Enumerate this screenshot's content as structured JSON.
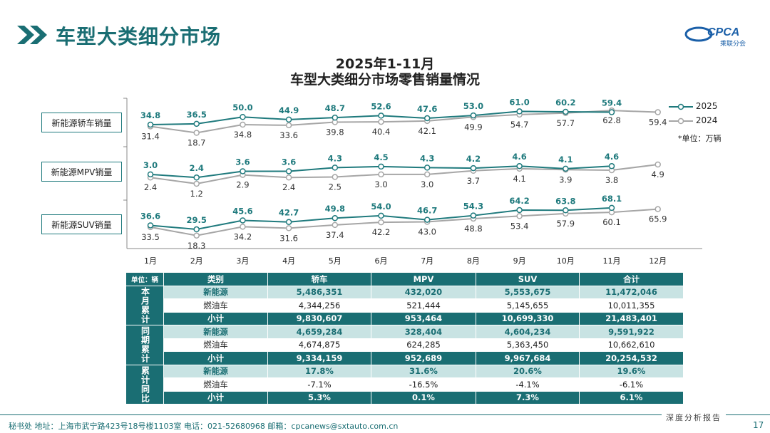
{
  "header": {
    "title": "车型大类细分市场"
  },
  "logo": {
    "text": "CPCA",
    "subtext": "乘联分会"
  },
  "chart_title": {
    "line1": "2025年1-11月",
    "line2": "车型大类细分市场零售销量情况"
  },
  "chart_data": {
    "type": "line",
    "categories": [
      "1月",
      "2月",
      "3月",
      "4月",
      "5月",
      "6月",
      "7月",
      "8月",
      "9月",
      "10月",
      "11月",
      "12月"
    ],
    "unit_note": "*单位：万辆",
    "legend": [
      "2025",
      "2024"
    ],
    "colors": {
      "2025": "#1f7a7d",
      "2024": "#a6a6a6"
    },
    "panels": [
      {
        "name": "新能源轿车销量",
        "series": [
          {
            "name": "2025",
            "values": [
              34.8,
              36.5,
              50.0,
              44.9,
              48.7,
              52.6,
              47.6,
              53.0,
              61.0,
              60.2,
              59.4,
              null
            ]
          },
          {
            "name": "2024",
            "values": [
              31.4,
              18.7,
              34.8,
              33.6,
              39.8,
              40.4,
              42.1,
              49.9,
              54.7,
              57.7,
              62.8,
              59.4
            ]
          }
        ]
      },
      {
        "name": "新能源MPV销量",
        "series": [
          {
            "name": "2025",
            "values": [
              3.0,
              2.4,
              3.6,
              3.6,
              4.3,
              4.5,
              4.3,
              4.2,
              4.6,
              4.1,
              4.6,
              null
            ]
          },
          {
            "name": "2024",
            "values": [
              2.4,
              1.2,
              2.9,
              2.4,
              2.5,
              3.0,
              3.0,
              3.7,
              4.1,
              3.9,
              3.8,
              4.9
            ]
          }
        ]
      },
      {
        "name": "新能源SUV销量",
        "series": [
          {
            "name": "2025",
            "values": [
              36.6,
              29.5,
              45.6,
              42.7,
              49.8,
              54.0,
              46.7,
              54.3,
              64.2,
              63.8,
              68.1,
              null
            ]
          },
          {
            "name": "2024",
            "values": [
              33.5,
              18.3,
              34.2,
              31.6,
              37.4,
              42.2,
              43.0,
              48.8,
              53.4,
              57.9,
              60.1,
              65.9
            ]
          }
        ]
      }
    ]
  },
  "table": {
    "unit": "单位：辆",
    "headers": [
      "类别",
      "轿车",
      "MPV",
      "SUV",
      "合计"
    ],
    "groups": [
      {
        "label": "本月累计",
        "rows": [
          {
            "kind": "nev",
            "cells": [
              "新能源",
              "5,486,351",
              "432,020",
              "5,553,675",
              "11,472,046"
            ]
          },
          {
            "kind": "ice",
            "cells": [
              "燃油车",
              "4,344,256",
              "521,444",
              "5,145,655",
              "10,011,355"
            ]
          },
          {
            "kind": "sub",
            "cells": [
              "小计",
              "9,830,607",
              "953,464",
              "10,699,330",
              "21,483,401"
            ]
          }
        ]
      },
      {
        "label": "同期累计",
        "rows": [
          {
            "kind": "nev",
            "cells": [
              "新能源",
              "4,659,284",
              "328,404",
              "4,604,234",
              "9,591,922"
            ]
          },
          {
            "kind": "ice",
            "cells": [
              "燃油车",
              "4,674,875",
              "624,285",
              "5,363,450",
              "10,662,610"
            ]
          },
          {
            "kind": "sub",
            "cells": [
              "小计",
              "9,334,159",
              "952,689",
              "9,967,684",
              "20,254,532"
            ]
          }
        ]
      },
      {
        "label": "累计同比",
        "rows": [
          {
            "kind": "nev",
            "cells": [
              "新能源",
              "17.8%",
              "31.6%",
              "20.6%",
              "19.6%"
            ]
          },
          {
            "kind": "ice",
            "cells": [
              "燃油车",
              "-7.1%",
              "-16.5%",
              "-4.1%",
              "-6.1%"
            ]
          },
          {
            "kind": "sub",
            "cells": [
              "小计",
              "5.3%",
              "0.1%",
              "7.3%",
              "6.1%"
            ]
          }
        ]
      }
    ]
  },
  "footer": {
    "text": "秘书处  地址：上海市武宁路423号18号楼1103室  电话：021-52680968  邮箱：cpcanews@sxtauto.com.cn",
    "right": "深度分析报告",
    "page": "17"
  }
}
